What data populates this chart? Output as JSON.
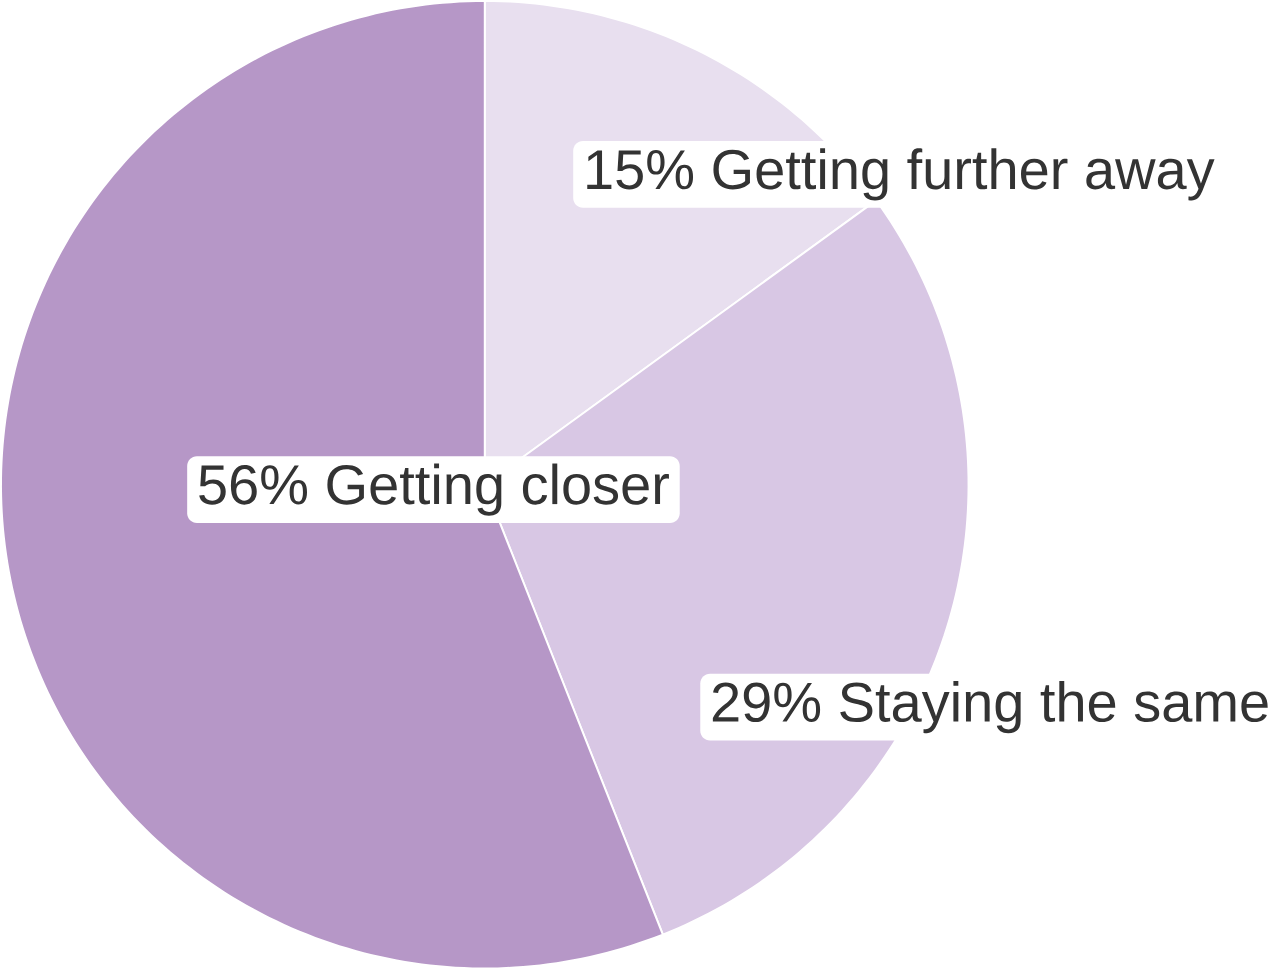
{
  "chart_data": {
    "type": "pie",
    "categories": [
      "Getting further away",
      "Staying the same",
      "Getting closer"
    ],
    "values": [
      15,
      29,
      56
    ],
    "value_labels": [
      "15%",
      "29%",
      "56%"
    ],
    "colors": [
      "#e8dfef",
      "#d8c7e4",
      "#b697c7"
    ]
  }
}
